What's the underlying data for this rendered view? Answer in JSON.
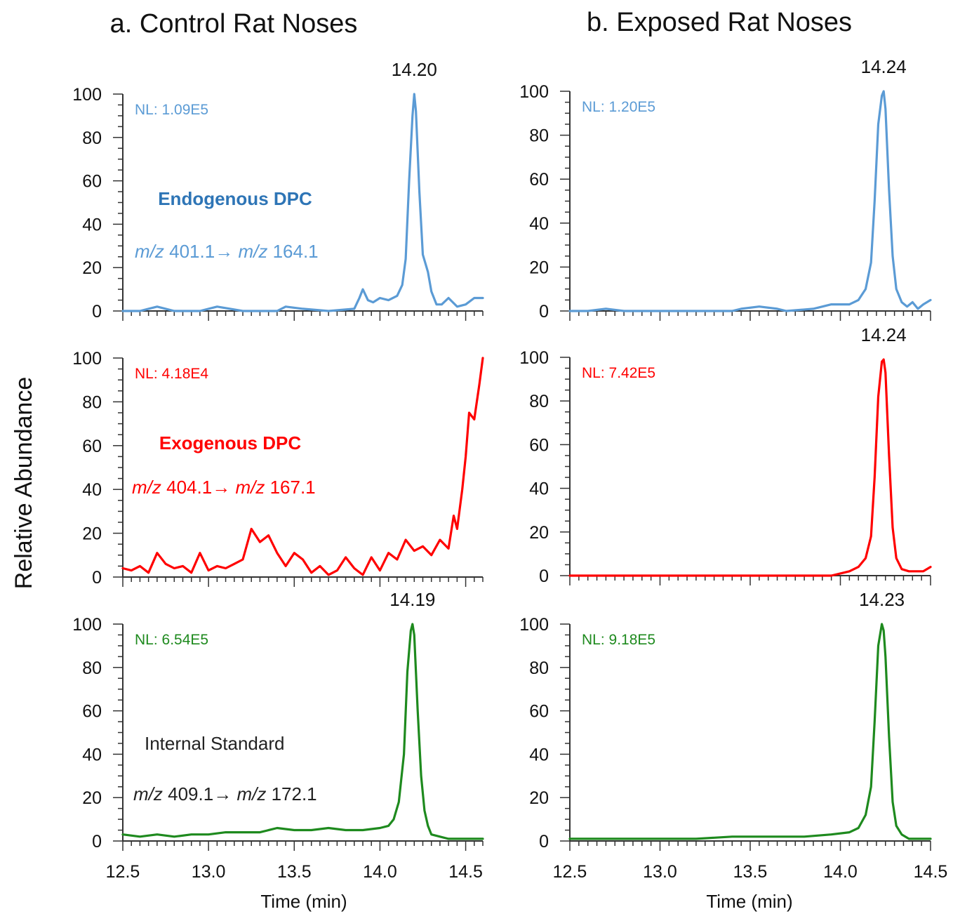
{
  "column_titles": [
    "a. Control Rat Noses",
    "b. Exposed Rat Noses"
  ],
  "y_axis_label": "Relative Abundance",
  "x_axis_label": "Time (min)",
  "x_ticks": [
    "12.5",
    "13.0",
    "13.5",
    "14.0",
    "14.5"
  ],
  "y_ticks": [
    "0",
    "20",
    "40",
    "60",
    "80",
    "100"
  ],
  "colors": {
    "endogenous": "#5b9bd5",
    "endogenous_text": "#2e75b6",
    "exogenous": "#ff0000",
    "internal_standard": "#1e8a1e",
    "annotation_dark": "#222222"
  },
  "annotations": {
    "endogenous": {
      "title": "Endogenous DPC",
      "mz1": "401.1",
      "mz2": "164.1"
    },
    "exogenous": {
      "title": "Exogenous DPC",
      "mz1": "404.1",
      "mz2": "167.1"
    },
    "internal_standard": {
      "title": "Internal Standard",
      "mz1": "409.1",
      "mz2": "172.1"
    },
    "mz_prefix": "m/z",
    "arrow": "→"
  },
  "chart_data": [
    {
      "id": "a-endogenous",
      "type": "line",
      "color": "#5b9bd5",
      "nl": "NL: 1.09E5",
      "peak_label": "14.20",
      "xlim": [
        12.5,
        14.6
      ],
      "ylim": [
        0,
        100
      ],
      "x": [
        12.5,
        12.6,
        12.65,
        12.7,
        12.75,
        12.8,
        12.95,
        13.05,
        13.2,
        13.4,
        13.45,
        13.55,
        13.7,
        13.85,
        13.88,
        13.9,
        13.93,
        13.96,
        14.0,
        14.05,
        14.1,
        14.13,
        14.15,
        14.17,
        14.19,
        14.2,
        14.21,
        14.23,
        14.25,
        14.28,
        14.3,
        14.33,
        14.36,
        14.4,
        14.45,
        14.5,
        14.55,
        14.6
      ],
      "y": [
        0,
        0,
        1,
        2,
        1,
        0,
        0,
        2,
        0,
        0,
        2,
        1,
        0,
        1,
        6,
        10,
        5,
        4,
        6,
        5,
        7,
        12,
        24,
        60,
        90,
        100,
        92,
        55,
        26,
        18,
        9,
        3,
        3,
        6,
        2,
        3,
        6,
        6
      ]
    },
    {
      "id": "a-exogenous",
      "type": "line",
      "color": "#ff0000",
      "nl": "NL: 4.18E4",
      "peak_label": "",
      "xlim": [
        12.5,
        14.6
      ],
      "ylim": [
        0,
        100
      ],
      "x": [
        12.5,
        12.55,
        12.6,
        12.65,
        12.7,
        12.75,
        12.8,
        12.85,
        12.9,
        12.95,
        13.0,
        13.05,
        13.1,
        13.15,
        13.2,
        13.25,
        13.3,
        13.35,
        13.4,
        13.45,
        13.5,
        13.55,
        13.6,
        13.65,
        13.7,
        13.75,
        13.8,
        13.85,
        13.9,
        13.95,
        14.0,
        14.05,
        14.1,
        14.15,
        14.2,
        14.25,
        14.3,
        14.35,
        14.4,
        14.43,
        14.45,
        14.48,
        14.5,
        14.52,
        14.55,
        14.58,
        14.6
      ],
      "y": [
        4,
        3,
        5,
        2,
        11,
        6,
        4,
        5,
        2,
        11,
        3,
        5,
        4,
        6,
        8,
        22,
        16,
        19,
        11,
        5,
        11,
        8,
        2,
        5,
        1,
        3,
        9,
        4,
        1,
        9,
        3,
        11,
        8,
        17,
        12,
        14,
        10,
        17,
        13,
        28,
        22,
        40,
        55,
        75,
        72,
        88,
        100
      ]
    },
    {
      "id": "a-internal",
      "type": "line",
      "color": "#1e8a1e",
      "nl": "NL: 6.54E5",
      "peak_label": "14.19",
      "xlim": [
        12.5,
        14.6
      ],
      "ylim": [
        0,
        100
      ],
      "x": [
        12.5,
        12.6,
        12.7,
        12.8,
        12.9,
        13.0,
        13.1,
        13.2,
        13.3,
        13.4,
        13.5,
        13.6,
        13.7,
        13.8,
        13.9,
        14.0,
        14.05,
        14.08,
        14.11,
        14.14,
        14.16,
        14.18,
        14.19,
        14.2,
        14.22,
        14.24,
        14.26,
        14.28,
        14.3,
        14.35,
        14.4,
        14.45,
        14.5,
        14.6
      ],
      "y": [
        3,
        2,
        3,
        2,
        3,
        3,
        4,
        4,
        4,
        6,
        5,
        5,
        6,
        5,
        5,
        6,
        7,
        10,
        18,
        40,
        78,
        97,
        100,
        95,
        60,
        30,
        14,
        7,
        3,
        2,
        1,
        1,
        1,
        1
      ]
    },
    {
      "id": "b-endogenous",
      "type": "line",
      "color": "#5b9bd5",
      "nl": "NL: 1.20E5",
      "peak_label": "14.24",
      "xlim": [
        12.5,
        14.5
      ],
      "ylim": [
        0,
        100
      ],
      "x": [
        12.5,
        12.6,
        12.7,
        12.8,
        13.0,
        13.2,
        13.4,
        13.45,
        13.55,
        13.65,
        13.7,
        13.85,
        13.95,
        14.05,
        14.1,
        14.14,
        14.17,
        14.19,
        14.21,
        14.23,
        14.24,
        14.25,
        14.27,
        14.29,
        14.31,
        14.34,
        14.37,
        14.4,
        14.43,
        14.46,
        14.5
      ],
      "y": [
        0,
        0,
        1,
        0,
        0,
        0,
        0,
        1,
        2,
        1,
        0,
        1,
        3,
        3,
        5,
        10,
        22,
        50,
        85,
        98,
        100,
        92,
        55,
        25,
        10,
        4,
        2,
        4,
        1,
        3,
        5
      ]
    },
    {
      "id": "b-exogenous",
      "type": "line",
      "color": "#ff0000",
      "nl": "NL: 7.42E5",
      "peak_label": "14.24",
      "xlim": [
        12.5,
        14.5
      ],
      "ylim": [
        0,
        100
      ],
      "x": [
        12.5,
        13.0,
        13.5,
        13.95,
        14.0,
        14.05,
        14.1,
        14.14,
        14.17,
        14.19,
        14.21,
        14.23,
        14.24,
        14.25,
        14.27,
        14.29,
        14.31,
        14.34,
        14.38,
        14.42,
        14.46,
        14.5
      ],
      "y": [
        0,
        0,
        0,
        0,
        1,
        2,
        4,
        8,
        18,
        45,
        82,
        98,
        99,
        93,
        55,
        22,
        8,
        3,
        2,
        2,
        2,
        4
      ]
    },
    {
      "id": "b-internal",
      "type": "line",
      "color": "#1e8a1e",
      "nl": "NL: 9.18E5",
      "peak_label": "14.23",
      "xlim": [
        12.5,
        14.5
      ],
      "ylim": [
        0,
        100
      ],
      "x": [
        12.5,
        12.6,
        12.7,
        12.8,
        13.0,
        13.2,
        13.4,
        13.6,
        13.8,
        13.95,
        14.05,
        14.1,
        14.14,
        14.17,
        14.19,
        14.21,
        14.23,
        14.24,
        14.25,
        14.27,
        14.29,
        14.31,
        14.34,
        14.38,
        14.42,
        14.46,
        14.5
      ],
      "y": [
        1,
        1,
        1,
        1,
        1,
        1,
        2,
        2,
        2,
        3,
        4,
        6,
        12,
        25,
        55,
        90,
        100,
        97,
        85,
        48,
        18,
        7,
        3,
        1,
        1,
        1,
        1
      ]
    }
  ]
}
